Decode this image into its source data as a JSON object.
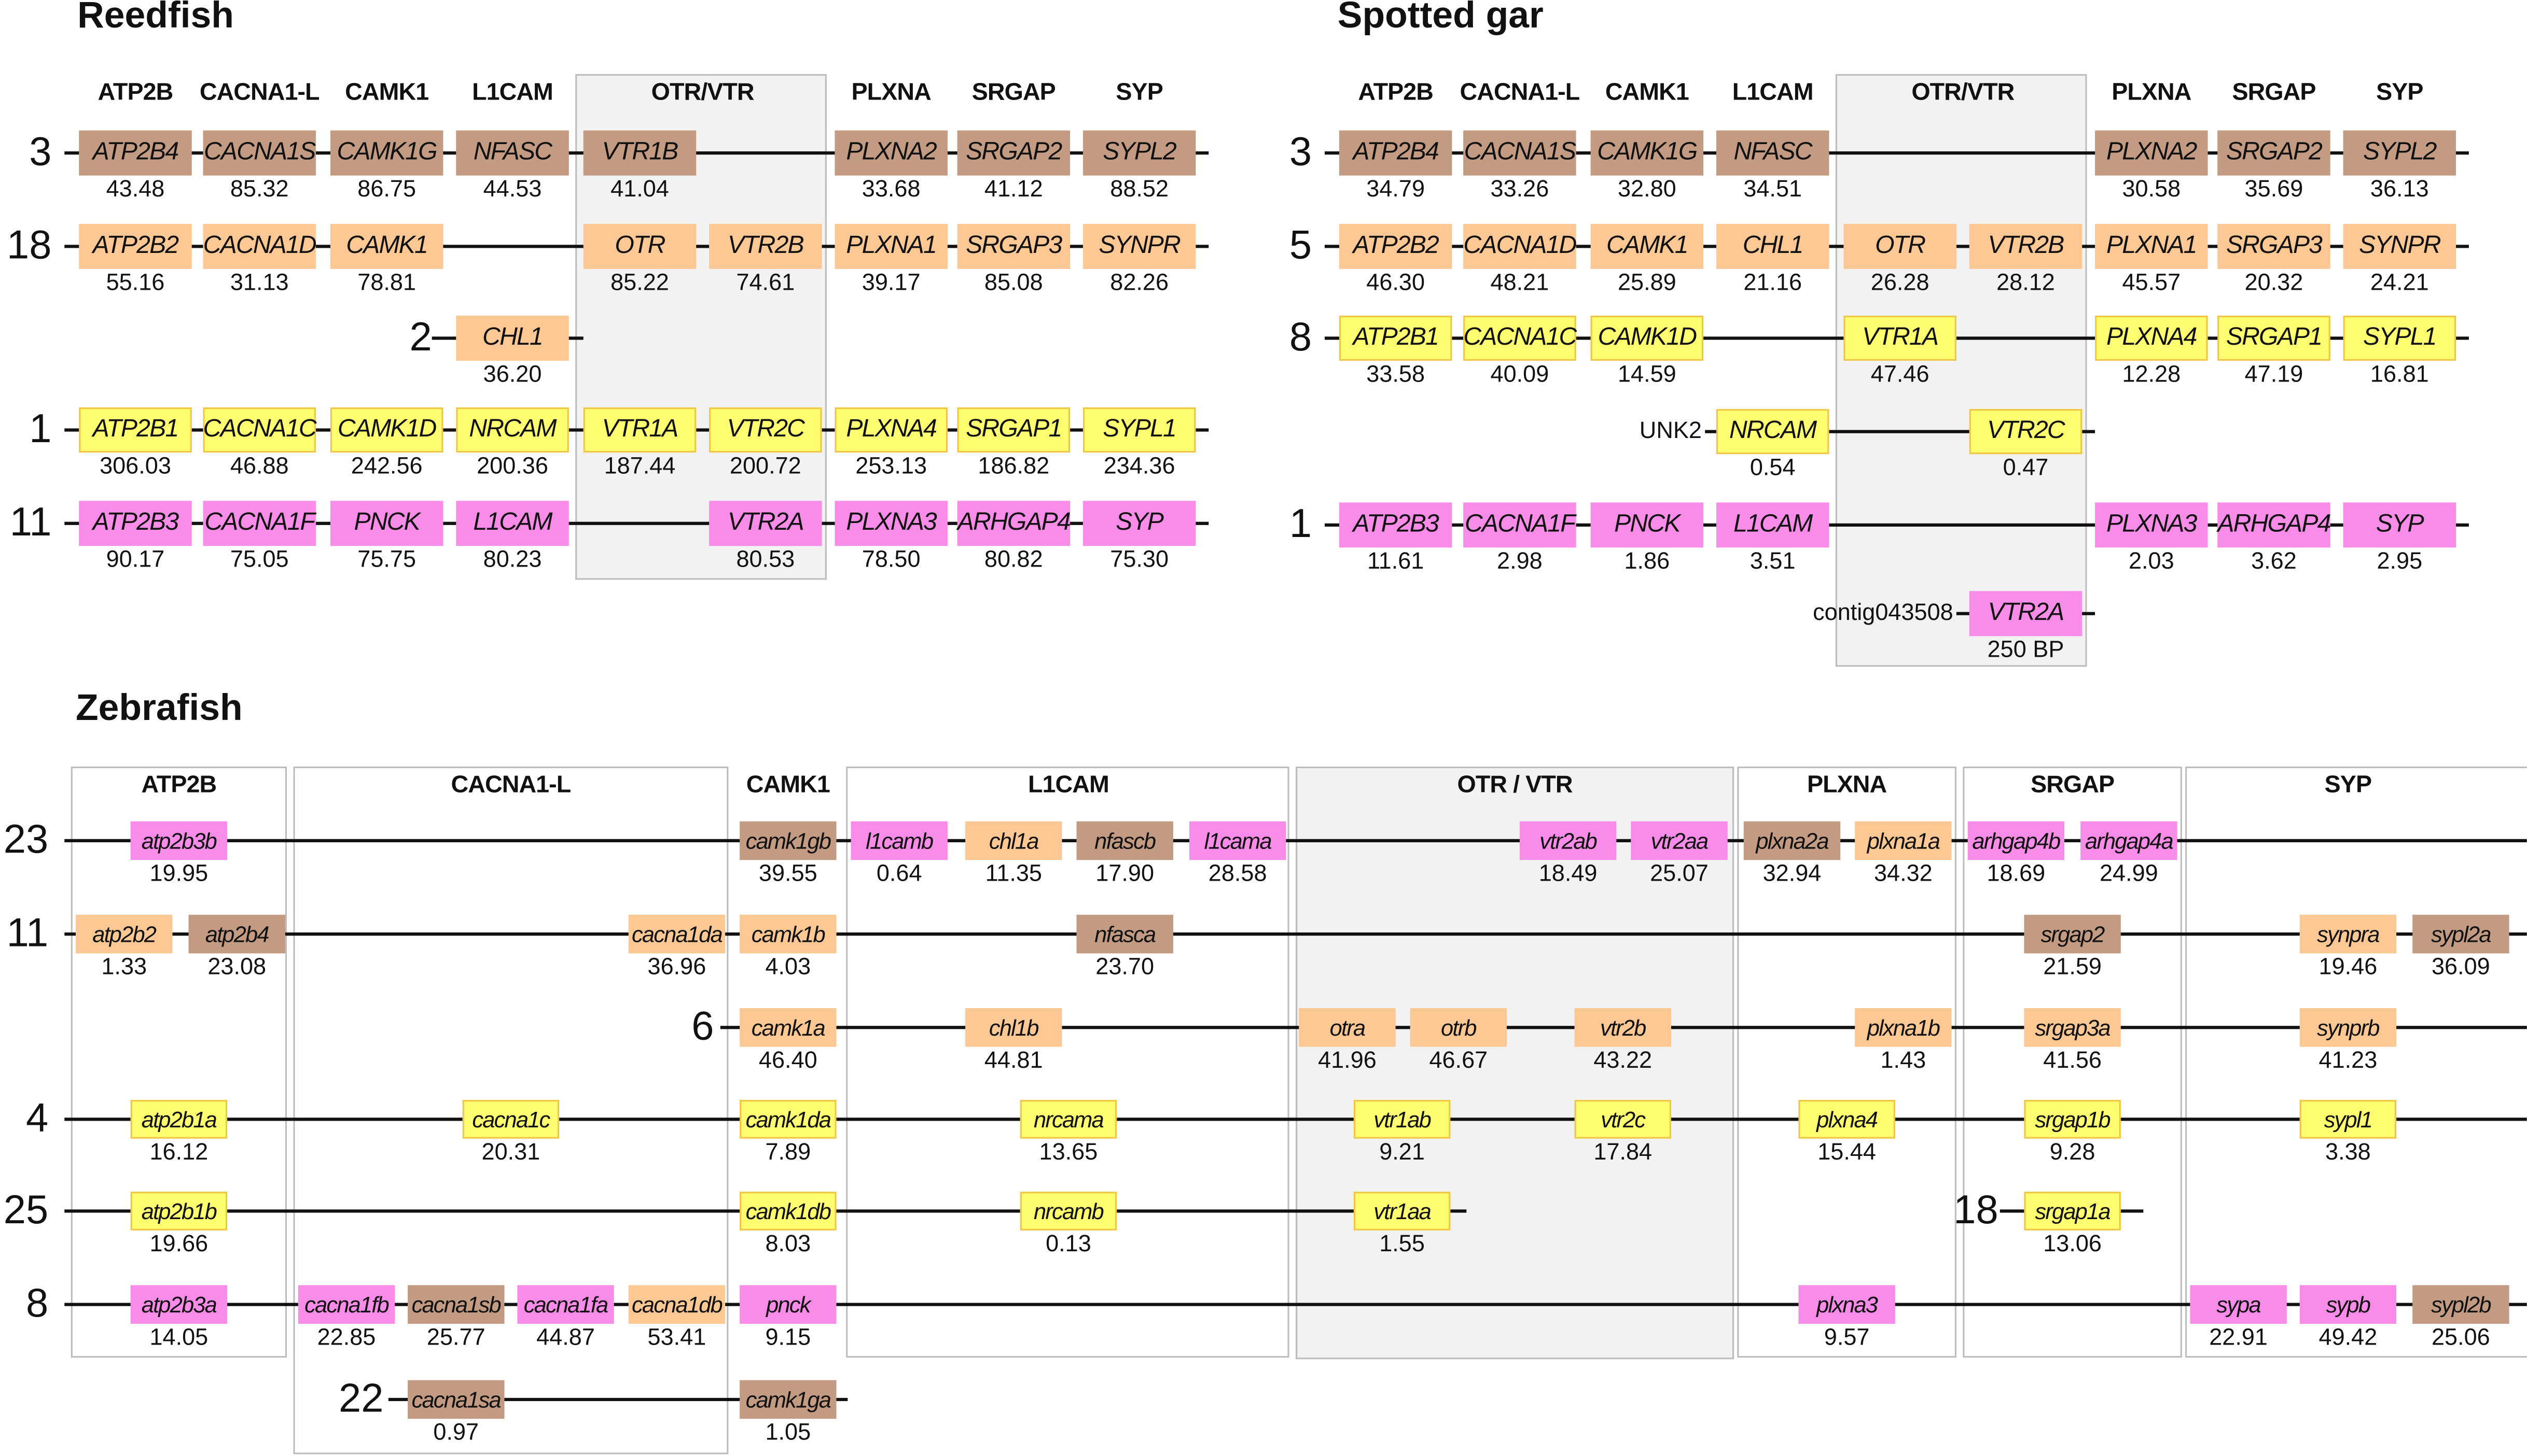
{
  "colors": {
    "brown": "#c39b82",
    "orange": "#fdc894",
    "yellow": "#fefe70",
    "pink": "#f98ce8"
  },
  "reedfish": {
    "title": "Reedfish",
    "headers": [
      "ATP2B",
      "CACNA1-L",
      "CAMK1",
      "L1CAM",
      "OTR/VTR",
      "PLXNA",
      "SRGAP",
      "SYP"
    ],
    "rows": [
      {
        "chr": "3",
        "color": "brown",
        "genes": [
          [
            "ATP2B4",
            "43.48"
          ],
          [
            "CACNA1S",
            "85.32"
          ],
          [
            "CAMK1G",
            "86.75"
          ],
          [
            "NFASC",
            "44.53"
          ],
          [
            "VTR1B",
            "41.04"
          ],
          null,
          [
            "PLXNA2",
            "33.68"
          ],
          [
            "SRGAP2",
            "41.12"
          ],
          [
            "SYPL2",
            "88.52"
          ]
        ]
      },
      {
        "chr": "18",
        "color": "orange",
        "genes": [
          [
            "ATP2B2",
            "55.16"
          ],
          [
            "CACNA1D",
            "31.13"
          ],
          [
            "CAMK1",
            "78.81"
          ],
          null,
          [
            "OTR",
            "85.22"
          ],
          [
            "VTR2B",
            "74.61"
          ],
          [
            "PLXNA1",
            "39.17"
          ],
          [
            "SRGAP3",
            "85.08"
          ],
          [
            "SYNPR",
            "82.26"
          ]
        ]
      },
      {
        "chr": "2",
        "color": "orange",
        "genes": [
          null,
          null,
          null,
          [
            "CHL1",
            "36.20"
          ],
          null,
          null,
          null,
          null,
          null
        ]
      },
      {
        "chr": "1",
        "color": "yellow",
        "genes": [
          [
            "ATP2B1",
            "306.03"
          ],
          [
            "CACNA1C",
            "46.88"
          ],
          [
            "CAMK1D",
            "242.56"
          ],
          [
            "NRCAM",
            "200.36"
          ],
          [
            "VTR1A",
            "187.44"
          ],
          [
            "VTR2C",
            "200.72"
          ],
          [
            "PLXNA4",
            "253.13"
          ],
          [
            "SRGAP1",
            "186.82"
          ],
          [
            "SYPL1",
            "234.36"
          ]
        ]
      },
      {
        "chr": "11",
        "color": "pink",
        "genes": [
          [
            "ATP2B3",
            "90.17"
          ],
          [
            "CACNA1F",
            "75.05"
          ],
          [
            "PNCK",
            "75.75"
          ],
          [
            "L1CAM",
            "80.23"
          ],
          null,
          [
            "VTR2A",
            "80.53"
          ],
          [
            "PLXNA3",
            "78.50"
          ],
          [
            "ARHGAP4",
            "80.82"
          ],
          [
            "SYP",
            "75.30"
          ]
        ]
      }
    ]
  },
  "gar": {
    "title": "Spotted gar",
    "headers": [
      "ATP2B",
      "CACNA1-L",
      "CAMK1",
      "L1CAM",
      "OTR/VTR",
      "PLXNA",
      "SRGAP",
      "SYP"
    ],
    "rows": [
      {
        "chr": "3",
        "color": "brown",
        "genes": [
          [
            "ATP2B4",
            "34.79"
          ],
          [
            "CACNA1S",
            "33.26"
          ],
          [
            "CAMK1G",
            "32.80"
          ],
          [
            "NFASC",
            "34.51"
          ],
          null,
          null,
          [
            "PLXNA2",
            "30.58"
          ],
          [
            "SRGAP2",
            "35.69"
          ],
          [
            "SYPL2",
            "36.13"
          ]
        ]
      },
      {
        "chr": "5",
        "color": "orange",
        "genes": [
          [
            "ATP2B2",
            "46.30"
          ],
          [
            "CACNA1D",
            "48.21"
          ],
          [
            "CAMK1",
            "25.89"
          ],
          [
            "CHL1",
            "21.16"
          ],
          [
            "OTR",
            "26.28"
          ],
          [
            "VTR2B",
            "28.12"
          ],
          [
            "PLXNA1",
            "45.57"
          ],
          [
            "SRGAP3",
            "20.32"
          ],
          [
            "SYNPR",
            "24.21"
          ]
        ]
      },
      {
        "chr": "8",
        "color": "yellow",
        "genes": [
          [
            "ATP2B1",
            "33.58"
          ],
          [
            "CACNA1C",
            "40.09"
          ],
          [
            "CAMK1D",
            "14.59"
          ],
          null,
          [
            "VTR1A",
            "47.46"
          ],
          null,
          [
            "PLXNA4",
            "12.28"
          ],
          [
            "SRGAP1",
            "47.19"
          ],
          [
            "SYPL1",
            "16.81"
          ]
        ]
      },
      {
        "chr": "UNK2",
        "color": "yellow",
        "genes": [
          null,
          null,
          null,
          [
            "NRCAM",
            "0.54"
          ],
          null,
          [
            "VTR2C",
            "0.47"
          ],
          null,
          null,
          null
        ]
      },
      {
        "chr": "1",
        "color": "pink",
        "genes": [
          [
            "ATP2B3",
            "11.61"
          ],
          [
            "CACNA1F",
            "2.98"
          ],
          [
            "PNCK",
            "1.86"
          ],
          [
            "L1CAM",
            "3.51"
          ],
          null,
          null,
          [
            "PLXNA3",
            "2.03"
          ],
          [
            "ARHGAP4",
            "3.62"
          ],
          [
            "SYP",
            "2.95"
          ]
        ]
      },
      {
        "chr": "contig043508",
        "color": "pink",
        "genes": [
          null,
          null,
          null,
          null,
          null,
          [
            "VTR2A",
            "250 BP"
          ],
          null,
          null,
          null
        ]
      }
    ]
  },
  "zebrafish": {
    "title": "Zebrafish",
    "headers": [
      "ATP2B",
      "CACNA1-L",
      "CAMK1",
      "L1CAM",
      "OTR / VTR",
      "PLXNA",
      "SRGAP",
      "SYP"
    ],
    "rows": [
      {
        "chr": "23",
        "genes": [
          [
            "atp2b3b",
            "19.95",
            "pink"
          ],
          [
            "camk1gb",
            "39.55",
            "brown"
          ],
          [
            "l1camb",
            "0.64",
            "pink"
          ],
          [
            "chl1a",
            "11.35",
            "orange"
          ],
          [
            "nfascb",
            "17.90",
            "brown"
          ],
          [
            "l1cama",
            "28.58",
            "pink"
          ],
          [
            "vtr2ab",
            "18.49",
            "pink"
          ],
          [
            "vtr2aa",
            "25.07",
            "pink"
          ],
          [
            "plxna2a",
            "32.94",
            "brown"
          ],
          [
            "plxna1a",
            "34.32",
            "orange"
          ],
          [
            "arhgap4b",
            "18.69",
            "pink"
          ],
          [
            "arhgap4a",
            "24.99",
            "pink"
          ]
        ]
      },
      {
        "chr": "11",
        "genes": [
          [
            "atp2b2",
            "1.33",
            "orange"
          ],
          [
            "atp2b4",
            "23.08",
            "brown"
          ],
          [
            "cacna1da",
            "36.96",
            "orange"
          ],
          [
            "camk1b",
            "4.03",
            "orange"
          ],
          [
            "nfasca",
            "23.70",
            "brown"
          ],
          [
            "srgap2",
            "21.59",
            "brown"
          ],
          [
            "synpra",
            "19.46",
            "orange"
          ],
          [
            "sypl2a",
            "36.09",
            "brown"
          ]
        ]
      },
      {
        "chr": "6",
        "genes": [
          [
            "camk1a",
            "46.40",
            "orange"
          ],
          [
            "chl1b",
            "44.81",
            "orange"
          ],
          [
            "otra",
            "41.96",
            "orange"
          ],
          [
            "otrb",
            "46.67",
            "orange"
          ],
          [
            "vtr2b",
            "43.22",
            "orange"
          ],
          [
            "plxna1b",
            "1.43",
            "orange"
          ],
          [
            "srgap3a",
            "41.56",
            "orange"
          ],
          [
            "synprb",
            "41.23",
            "orange"
          ]
        ]
      },
      {
        "chr": "4",
        "genes": [
          [
            "atp2b1a",
            "16.12",
            "yellow"
          ],
          [
            "cacna1c",
            "20.31",
            "yellow"
          ],
          [
            "camk1da",
            "7.89",
            "yellow"
          ],
          [
            "nrcama",
            "13.65",
            "yellow"
          ],
          [
            "vtr1ab",
            "9.21",
            "yellow"
          ],
          [
            "vtr2c",
            "17.84",
            "yellow"
          ],
          [
            "plxna4",
            "15.44",
            "yellow"
          ],
          [
            "srgap1b",
            "9.28",
            "yellow"
          ],
          [
            "sypl1",
            "3.38",
            "yellow"
          ]
        ]
      },
      {
        "chr": "25",
        "genes": [
          [
            "atp2b1b",
            "19.66",
            "yellow"
          ],
          [
            "camk1db",
            "8.03",
            "yellow"
          ],
          [
            "nrcamb",
            "0.13",
            "yellow"
          ],
          [
            "vtr1aa",
            "1.55",
            "yellow"
          ]
        ]
      },
      {
        "chr": "18",
        "genes": [
          [
            "srgap1a",
            "13.06",
            "yellow"
          ]
        ]
      },
      {
        "chr": "8",
        "genes": [
          [
            "atp2b3a",
            "14.05",
            "pink"
          ],
          [
            "cacna1fb",
            "22.85",
            "pink"
          ],
          [
            "cacna1sb",
            "25.77",
            "brown"
          ],
          [
            "cacna1fa",
            "44.87",
            "pink"
          ],
          [
            "cacna1db",
            "53.41",
            "orange"
          ],
          [
            "pnck",
            "9.15",
            "pink"
          ],
          [
            "plxna3",
            "9.57",
            "pink"
          ],
          [
            "sypa",
            "22.91",
            "pink"
          ],
          [
            "sypb",
            "49.42",
            "pink"
          ],
          [
            "sypl2b",
            "25.06",
            "brown"
          ]
        ]
      },
      {
        "chr": "22",
        "genes": [
          [
            "cacna1sa",
            "0.97",
            "brown"
          ],
          [
            "camk1ga",
            "1.05",
            "brown"
          ]
        ]
      }
    ]
  }
}
